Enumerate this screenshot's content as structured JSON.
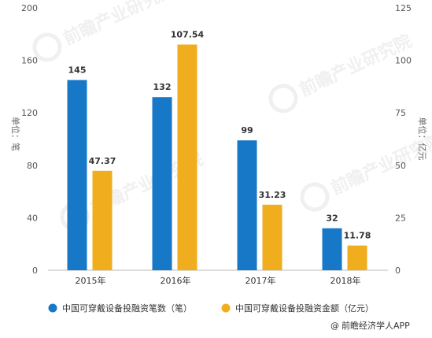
{
  "chart_data": {
    "type": "bar",
    "categories": [
      "2015年",
      "2016年",
      "2017年",
      "2018年"
    ],
    "series": [
      {
        "name": "中国可穿戴设备投融资笔数（笔）",
        "values": [
          145,
          132,
          99,
          32
        ],
        "axis": "left",
        "labels": [
          "145",
          "132",
          "99",
          "32"
        ]
      },
      {
        "name": "中国可穿戴设备投融资金额（亿元）",
        "values": [
          47.37,
          107.54,
          31.23,
          11.78
        ],
        "axis": "right",
        "labels": [
          "47.37",
          "107.54",
          "31.23",
          "11.78"
        ]
      }
    ],
    "y_left": {
      "label": "单位：笔",
      "ylim": [
        0,
        200
      ],
      "ticks": [
        "0",
        "40",
        "80",
        "120",
        "160",
        "200"
      ]
    },
    "y_right": {
      "label": "单位：亿元",
      "ylim": [
        0,
        125
      ],
      "ticks": [
        "0",
        "25",
        "50",
        "75",
        "100",
        "125"
      ]
    },
    "grid": false,
    "legend_position": "bottom"
  },
  "colors": {
    "series_1": "#1878c8",
    "series_2": "#f0ae1e"
  },
  "legend": {
    "item1": "中国可穿戴设备投融资笔数（笔）",
    "item2": "中国可穿戴设备投融资金额（亿元）"
  },
  "source": {
    "text": "前瞻经济学人APP",
    "icon": "at-sign-icon"
  },
  "watermark": "前瞻产业研究院"
}
